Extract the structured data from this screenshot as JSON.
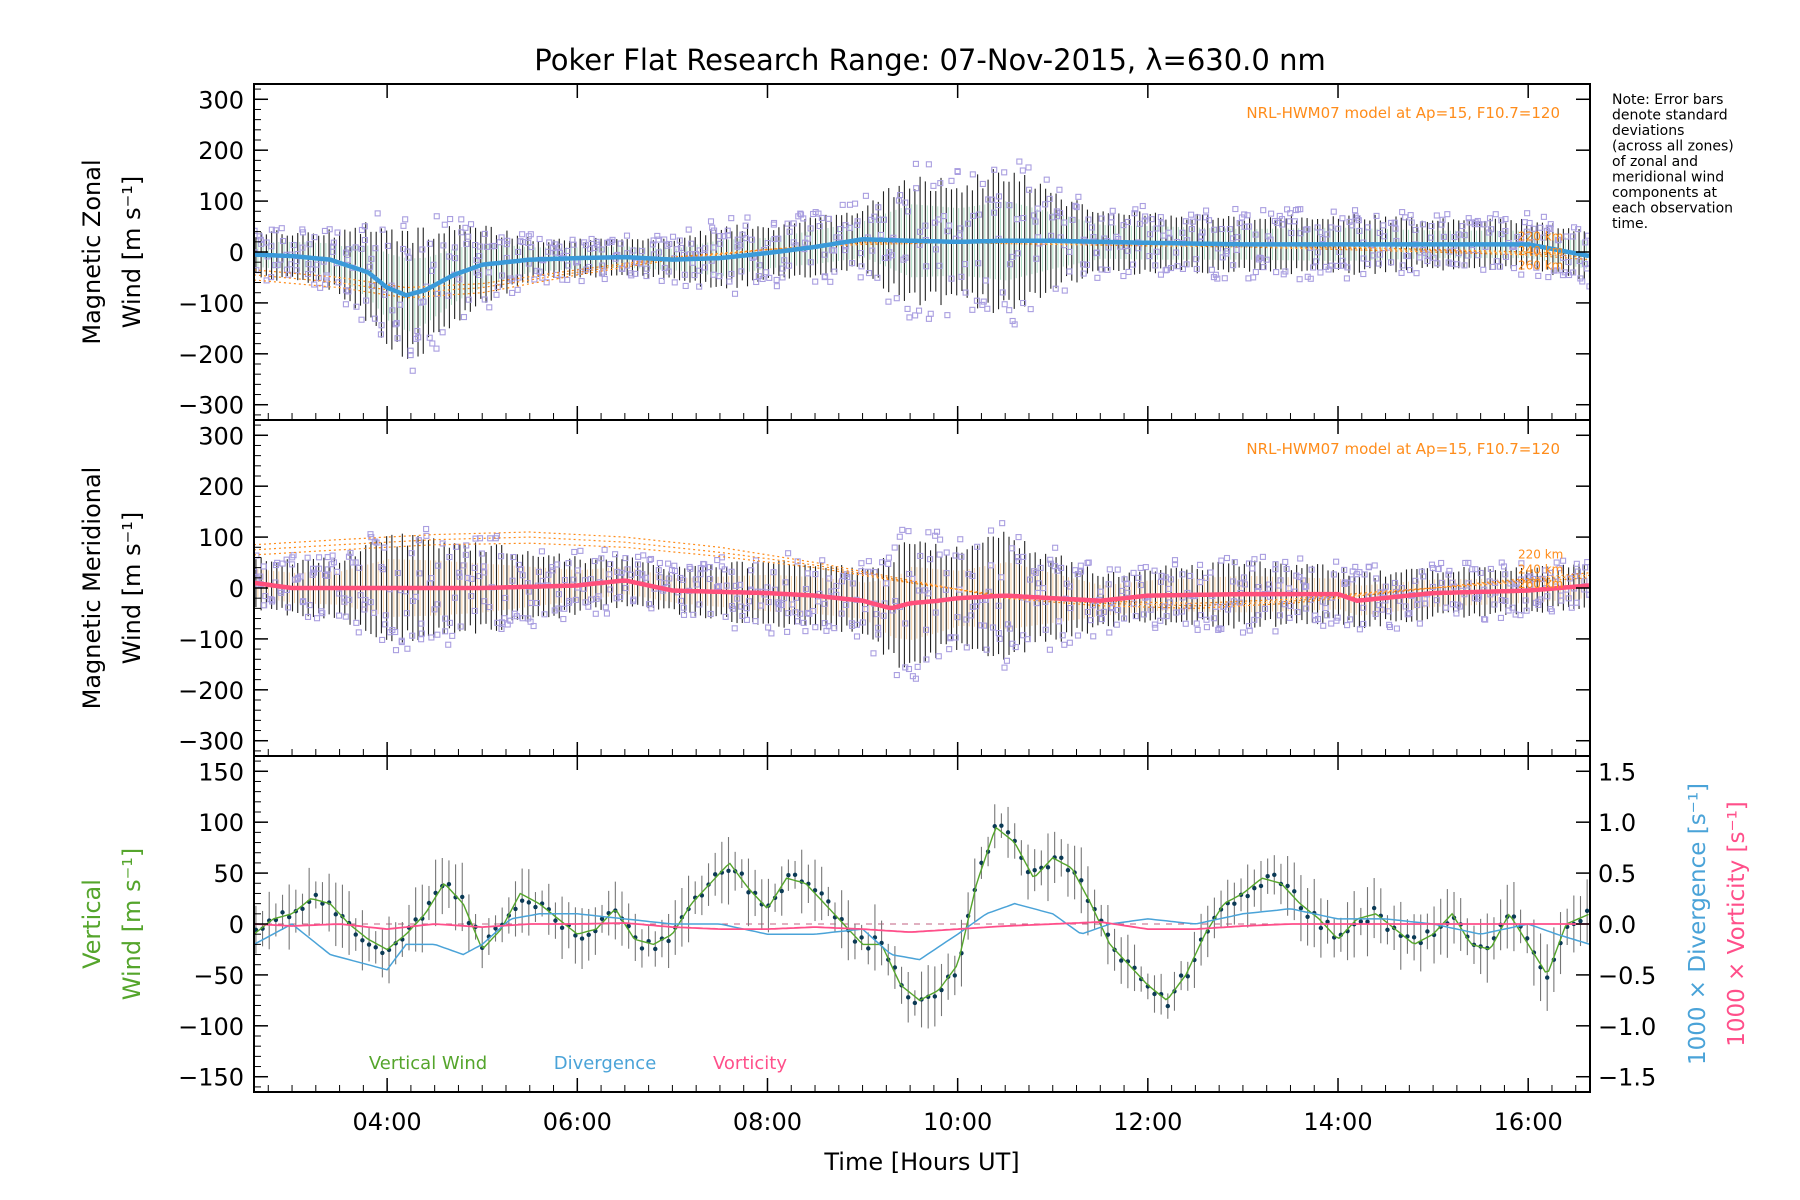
{
  "title": "Poker Flat Research Range: 07-Nov-2015, λ=630.0 nm",
  "note_lines": [
    "Note: Error bars",
    "denote standard",
    "deviations",
    "(across all zones)",
    "of zonal and",
    "meridional wind",
    "components at",
    "each observation",
    "time."
  ],
  "x_axis": {
    "label": "Time [Hours UT]",
    "range": [
      2.6,
      16.65
    ],
    "ticks": [
      4,
      6,
      8,
      10,
      12,
      14,
      16
    ],
    "tick_labels": [
      "04:00",
      "06:00",
      "08:00",
      "10:00",
      "12:00",
      "14:00",
      "16:00"
    ]
  },
  "model_label": "NRL-HWM07 model at Ap=15, F10.7=120",
  "colors": {
    "zonal": "#3a9ad9",
    "meridional": "#ff4f7b",
    "vertical": "#55a52c",
    "divergence": "#4aa3d8",
    "vorticity": "#ff4f8a",
    "scatter": "#a99ee0",
    "model": "#ff8c1a",
    "errorbar": "#222222",
    "dot": "#0b3a55"
  },
  "chart_data": [
    {
      "type": "scatter",
      "panel": "zonal",
      "ylabel_lines": [
        "Magnetic Zonal",
        "Wind [m s⁻¹]"
      ],
      "ylim": [
        -330,
        330
      ],
      "yticks": [
        -300,
        -200,
        -100,
        0,
        100,
        200,
        300
      ],
      "ytick_labels": [
        "−300",
        "−200",
        "−100",
        "0",
        "100",
        "200",
        "300"
      ],
      "model_altitude_labels": [
        "220 km",
        "240 km",
        "260 km"
      ],
      "mean_wind": {
        "x": [
          2.6,
          3.0,
          3.4,
          3.8,
          4.0,
          4.2,
          4.4,
          4.7,
          5.0,
          5.5,
          6.0,
          6.5,
          7.0,
          7.5,
          8.0,
          8.5,
          9.0,
          9.5,
          10.0,
          10.5,
          11.0,
          12.0,
          13.0,
          14.0,
          15.0,
          16.0,
          16.65
        ],
        "y": [
          -5,
          -8,
          -15,
          -40,
          -70,
          -85,
          -75,
          -45,
          -25,
          -15,
          -12,
          -10,
          -15,
          -12,
          -2,
          10,
          25,
          22,
          20,
          22,
          22,
          18,
          15,
          15,
          15,
          15,
          -8
        ]
      },
      "spread": {
        "x": [
          2.6,
          3.5,
          4.0,
          4.2,
          4.5,
          5.0,
          5.5,
          6.0,
          7.0,
          7.5,
          8.0,
          9.0,
          9.5,
          10.0,
          10.5,
          11.0,
          11.5,
          12.0,
          13.0,
          14.0,
          15.0,
          16.0,
          16.65
        ],
        "y": [
          40,
          55,
          110,
          120,
          100,
          70,
          40,
          35,
          35,
          60,
          50,
          60,
          120,
          110,
          130,
          90,
          55,
          55,
          50,
          55,
          45,
          45,
          45
        ]
      },
      "model_curves": [
        {
          "name": "220 km",
          "x": [
            2.6,
            3.5,
            4.2,
            5.0,
            6.0,
            7.0,
            8.0,
            9.0,
            10.0,
            11.0,
            12.0,
            13.0,
            14.0,
            15.0,
            16.0,
            16.65
          ],
          "y": [
            -55,
            -70,
            -90,
            -80,
            -45,
            -15,
            5,
            20,
            22,
            20,
            18,
            15,
            10,
            5,
            0,
            -5
          ]
        },
        {
          "name": "240 km",
          "x": [
            2.6,
            3.5,
            4.2,
            5.0,
            6.0,
            7.0,
            8.0,
            9.0,
            10.0,
            11.0,
            12.0,
            13.0,
            14.0,
            15.0,
            16.0,
            16.65
          ],
          "y": [
            -45,
            -60,
            -80,
            -70,
            -40,
            -12,
            5,
            18,
            20,
            18,
            15,
            12,
            8,
            3,
            -3,
            -10
          ]
        },
        {
          "name": "260 km",
          "x": [
            2.6,
            3.5,
            4.2,
            5.0,
            6.0,
            7.0,
            8.0,
            9.0,
            10.0,
            11.0,
            12.0,
            13.0,
            14.0,
            15.0,
            16.0,
            16.65
          ],
          "y": [
            -35,
            -50,
            -70,
            -62,
            -35,
            -10,
            5,
            15,
            18,
            15,
            12,
            10,
            5,
            0,
            -6,
            -15
          ]
        }
      ]
    },
    {
      "type": "scatter",
      "panel": "meridional",
      "ylabel_lines": [
        "Magnetic Meridional",
        "Wind [m s⁻¹]"
      ],
      "ylim": [
        -330,
        330
      ],
      "yticks": [
        -300,
        -200,
        -100,
        0,
        100,
        200,
        300
      ],
      "ytick_labels": [
        "−300",
        "−200",
        "−100",
        "0",
        "100",
        "200",
        "300"
      ],
      "model_altitude_labels": [
        "220 km",
        "240 km",
        "260 km"
      ],
      "mean_wind": {
        "x": [
          2.6,
          3.0,
          4.0,
          5.0,
          6.0,
          6.5,
          7.0,
          8.0,
          8.5,
          9.0,
          9.3,
          9.5,
          9.8,
          10.0,
          10.5,
          11.0,
          11.5,
          12.0,
          13.0,
          14.0,
          14.2,
          15.0,
          16.0,
          16.65
        ],
        "y": [
          10,
          0,
          0,
          0,
          5,
          15,
          -5,
          -10,
          -15,
          -25,
          -40,
          -30,
          -25,
          -20,
          -15,
          -20,
          -25,
          -15,
          -12,
          -12,
          -25,
          -10,
          -5,
          5
        ]
      },
      "spread": {
        "x": [
          2.6,
          3.5,
          4.0,
          4.5,
          5.0,
          6.0,
          7.0,
          8.0,
          9.0,
          9.5,
          10.0,
          10.5,
          11.0,
          11.5,
          12.0,
          13.0,
          14.0,
          15.0,
          16.0,
          16.65
        ],
        "y": [
          45,
          55,
          95,
          90,
          80,
          50,
          40,
          60,
          60,
          120,
          90,
          110,
          80,
          50,
          50,
          60,
          50,
          45,
          40,
          40
        ]
      },
      "model_curves": [
        {
          "name": "220 km",
          "x": [
            2.6,
            3.5,
            4.5,
            5.5,
            6.5,
            7.5,
            8.5,
            9.5,
            10.5,
            11.5,
            12.5,
            13.5,
            14.5,
            15.5,
            16.65
          ],
          "y": [
            85,
            95,
            105,
            110,
            100,
            80,
            50,
            15,
            -20,
            -35,
            -40,
            -30,
            -10,
            10,
            30
          ]
        },
        {
          "name": "240 km",
          "x": [
            2.6,
            3.5,
            4.5,
            5.5,
            6.5,
            7.5,
            8.5,
            9.5,
            10.5,
            11.5,
            12.5,
            13.5,
            14.5,
            15.5,
            16.65
          ],
          "y": [
            75,
            85,
            95,
            100,
            90,
            70,
            45,
            12,
            -18,
            -30,
            -35,
            -26,
            -8,
            8,
            25
          ]
        },
        {
          "name": "260 km",
          "x": [
            2.6,
            3.5,
            4.5,
            5.5,
            6.5,
            7.5,
            8.5,
            9.5,
            10.5,
            11.5,
            12.5,
            13.5,
            14.5,
            15.5,
            16.65
          ],
          "y": [
            65,
            75,
            85,
            88,
            80,
            62,
            40,
            10,
            -15,
            -26,
            -30,
            -22,
            -6,
            6,
            20
          ]
        }
      ]
    },
    {
      "type": "line",
      "panel": "vertical",
      "ylabel_lines": [
        "Vertical",
        "Wind [m s⁻¹]"
      ],
      "ylim": [
        -165,
        165
      ],
      "yticks": [
        -150,
        -100,
        -50,
        0,
        50,
        100,
        150
      ],
      "ytick_labels": [
        "−150",
        "−100",
        "−50",
        "0",
        "50",
        "100",
        "150"
      ],
      "y2lim": [
        -1.65,
        1.65
      ],
      "y2ticks": [
        -1.5,
        -1.0,
        -0.5,
        0.0,
        0.5,
        1.0,
        1.5
      ],
      "y2tick_labels": [
        "−1.5",
        "−1.0",
        "−0.5",
        "0.0",
        "0.5",
        "1.0",
        "1.5"
      ],
      "y2label_div": "1000 × Divergence [s⁻¹]",
      "y2label_vort": "1000 × Vorticity [s⁻¹]",
      "legend": [
        "Vertical Wind",
        "Divergence",
        "Vorticity"
      ],
      "series": [
        {
          "name": "Vertical Wind",
          "x": [
            2.6,
            2.8,
            3.0,
            3.2,
            3.4,
            3.6,
            3.8,
            4.0,
            4.2,
            4.4,
            4.6,
            4.8,
            5.0,
            5.2,
            5.4,
            5.6,
            5.8,
            6.0,
            6.2,
            6.4,
            6.6,
            6.8,
            7.0,
            7.2,
            7.4,
            7.6,
            7.8,
            8.0,
            8.2,
            8.4,
            8.6,
            8.8,
            9.0,
            9.2,
            9.4,
            9.6,
            9.8,
            10.0,
            10.2,
            10.4,
            10.6,
            10.8,
            11.0,
            11.2,
            11.4,
            11.6,
            11.8,
            12.0,
            12.2,
            12.4,
            12.6,
            12.8,
            13.0,
            13.2,
            13.4,
            13.6,
            13.8,
            14.0,
            14.2,
            14.4,
            14.6,
            14.8,
            15.0,
            15.2,
            15.4,
            15.6,
            15.8,
            16.0,
            16.2,
            16.4,
            16.65
          ],
          "y": [
            -10,
            5,
            10,
            25,
            20,
            0,
            -15,
            -25,
            -10,
            10,
            40,
            20,
            -25,
            -5,
            30,
            20,
            5,
            -10,
            -5,
            15,
            -15,
            -20,
            -10,
            20,
            40,
            60,
            35,
            15,
            45,
            40,
            20,
            0,
            -20,
            -20,
            -60,
            -75,
            -65,
            -40,
            40,
            95,
            80,
            45,
            65,
            55,
            20,
            -20,
            -40,
            -60,
            -75,
            -50,
            -10,
            20,
            30,
            45,
            40,
            20,
            5,
            -15,
            5,
            10,
            -5,
            -20,
            -10,
            10,
            -20,
            -25,
            10,
            -20,
            -50,
            0,
            10
          ]
        },
        {
          "name": "Divergence",
          "x": [
            2.6,
            3.0,
            3.4,
            3.8,
            4.0,
            4.2,
            4.5,
            4.8,
            5.0,
            5.3,
            5.6,
            6.0,
            6.5,
            7.0,
            7.5,
            8.0,
            8.5,
            9.0,
            9.3,
            9.6,
            10.0,
            10.3,
            10.6,
            11.0,
            11.3,
            11.6,
            12.0,
            12.5,
            13.0,
            13.5,
            14.0,
            14.5,
            15.0,
            15.5,
            16.0,
            16.3,
            16.65
          ],
          "y": [
            -0.2,
            0.0,
            -0.3,
            -0.4,
            -0.45,
            -0.2,
            -0.2,
            -0.3,
            -0.2,
            0.05,
            0.1,
            0.1,
            0.05,
            0.0,
            0.0,
            -0.1,
            -0.1,
            -0.05,
            -0.3,
            -0.35,
            -0.1,
            0.1,
            0.2,
            0.1,
            -0.1,
            0.0,
            0.05,
            0.0,
            0.1,
            0.15,
            0.05,
            0.05,
            0.0,
            -0.1,
            0.0,
            -0.1,
            -0.2
          ]
        },
        {
          "name": "Vorticity",
          "x": [
            2.6,
            3.0,
            3.5,
            4.0,
            4.5,
            5.0,
            5.5,
            6.0,
            6.5,
            7.0,
            7.5,
            8.0,
            8.5,
            9.0,
            9.5,
            10.0,
            10.5,
            11.0,
            11.5,
            12.0,
            12.5,
            13.0,
            13.5,
            14.0,
            14.5,
            15.0,
            15.5,
            16.0,
            16.65
          ],
          "y": [
            0.0,
            -0.02,
            0.0,
            -0.05,
            0.0,
            -0.03,
            0.0,
            0.0,
            0.01,
            -0.03,
            -0.05,
            -0.05,
            -0.03,
            -0.05,
            -0.08,
            -0.05,
            -0.02,
            0.0,
            0.02,
            -0.05,
            -0.05,
            -0.02,
            0.0,
            0.0,
            0.0,
            0.0,
            0.0,
            0.0,
            0.0
          ]
        }
      ]
    }
  ]
}
